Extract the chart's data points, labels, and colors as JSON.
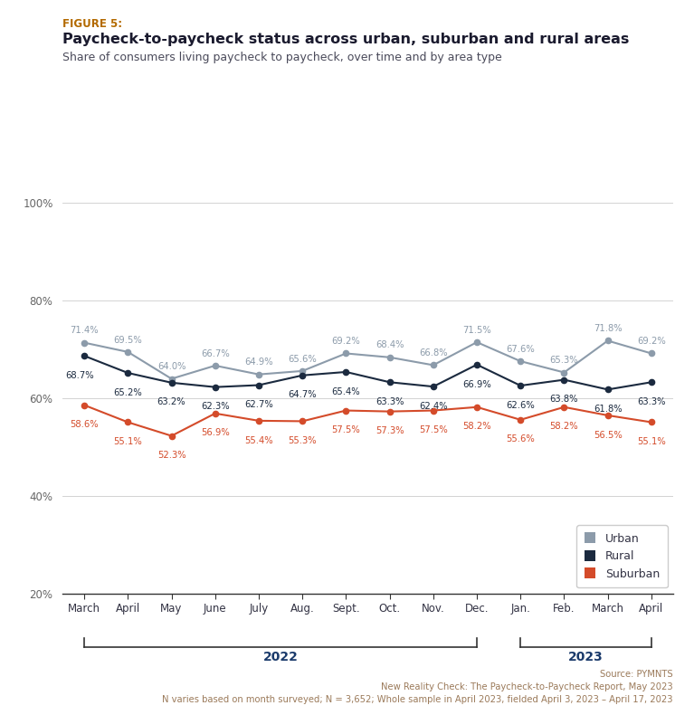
{
  "figure_label": "FIGURE 5:",
  "title": "Paycheck-to-paycheck status across urban, suburban and rural areas",
  "subtitle": "Share of consumers living paycheck to paycheck, over time and by area type",
  "months": [
    "March",
    "April",
    "May",
    "June",
    "July",
    "Aug.",
    "Sept.",
    "Oct.",
    "Nov.",
    "Dec.",
    "Jan.",
    "Feb.",
    "March",
    "April"
  ],
  "urban": [
    71.4,
    69.5,
    64.0,
    66.7,
    64.9,
    65.6,
    69.2,
    68.4,
    66.8,
    71.5,
    67.6,
    65.3,
    71.8,
    69.2
  ],
  "rural": [
    68.7,
    65.2,
    63.2,
    62.3,
    62.7,
    64.7,
    65.4,
    63.3,
    62.4,
    66.9,
    62.6,
    63.8,
    61.8,
    63.3
  ],
  "suburban": [
    58.6,
    55.1,
    52.3,
    56.9,
    55.4,
    55.3,
    57.5,
    57.3,
    57.5,
    58.2,
    55.6,
    58.2,
    56.5,
    55.1
  ],
  "urban_color": "#8c9baa",
  "rural_color": "#1b2a3f",
  "suburban_color": "#d44b2a",
  "source_text": "Source: PYMNTS\nNew Reality Check: The Paycheck-to-Paycheck Report, May 2023\nN varies based on month surveyed; N = 3,652; Whole sample in April 2023, fielded April 3, 2023 – April 17, 2023",
  "background_color": "#ffffff",
  "ylim": [
    20,
    105
  ],
  "yticks": [
    20,
    40,
    60,
    80,
    100
  ],
  "label_color_figure": "#b36a00",
  "title_color": "#1a1a2e",
  "subtitle_color": "#4a4a5a",
  "year_label_color": "#1a3a6b",
  "bracket_color": "#333333",
  "source_color": "#9b7a5a"
}
